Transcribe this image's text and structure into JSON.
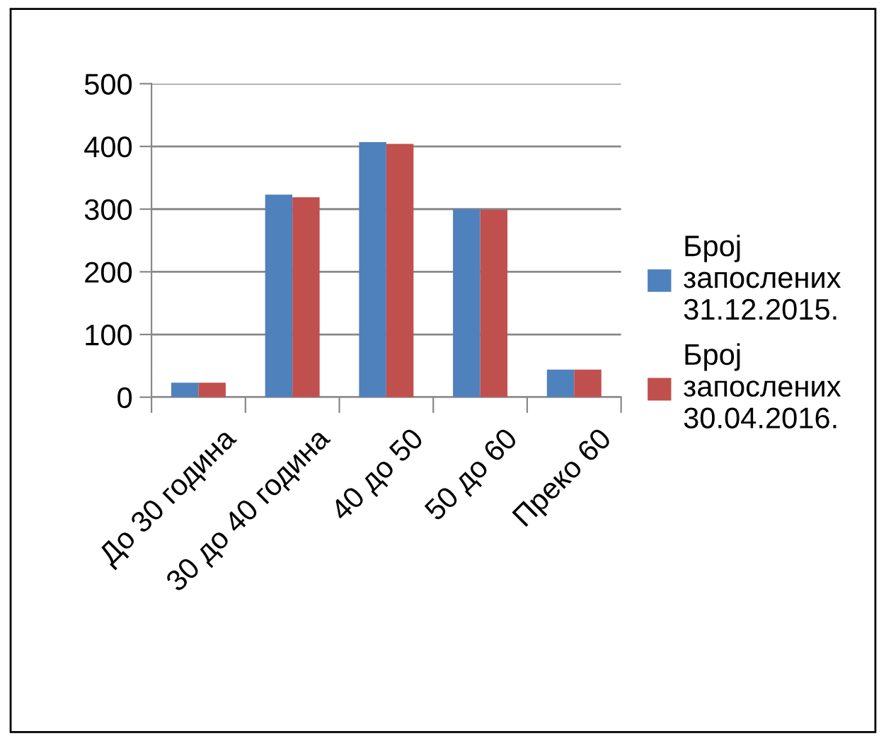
{
  "chart_data": {
    "type": "bar",
    "categories": [
      "До 30 година",
      "30 до 40 година",
      "40 до 50",
      "50 до 60",
      "Преко 60"
    ],
    "series": [
      {
        "name": "Број\nзапослених\n31.12.2015.",
        "color": "#4f81bd",
        "values": [
          23,
          323,
          407,
          300,
          44
        ]
      },
      {
        "name": "Број\nзапослених\n30.04.2016.",
        "color": "#c0504d",
        "values": [
          23,
          319,
          404,
          299,
          44
        ]
      }
    ],
    "ylim": [
      0,
      500
    ],
    "yticks": [
      0,
      100,
      200,
      300,
      400,
      500
    ],
    "grid": "y",
    "legend": "right"
  }
}
